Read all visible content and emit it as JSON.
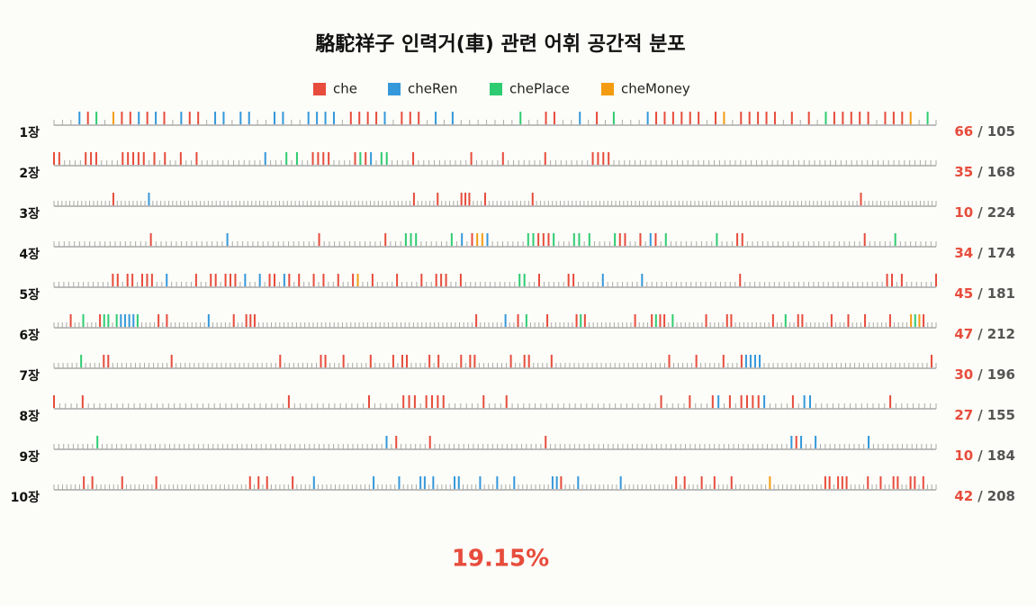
{
  "chart_data": {
    "type": "tick-strip",
    "title": "駱駝祥子 인력거(車) 관련 어휘 공간적 분포",
    "series": [
      {
        "name": "che",
        "color": "#e74c3c"
      },
      {
        "name": "cheRen",
        "color": "#3498db"
      },
      {
        "name": "chePlace",
        "color": "#2ecc71"
      },
      {
        "name": "cheMoney",
        "color": "#f39c12"
      }
    ],
    "separator": "/",
    "chapters": [
      {
        "label": "1장",
        "count": 66,
        "total": 105,
        "hits": [
          [
            4,
            8,
            9,
            11,
            13,
            16,
            17,
            35,
            36,
            37,
            38,
            41,
            42,
            43,
            58,
            59,
            64,
            71,
            72,
            73,
            74,
            75,
            76,
            78,
            81,
            82,
            83,
            84,
            85,
            87,
            89,
            92,
            93,
            94,
            95,
            96,
            98,
            99,
            100
          ],
          [
            3,
            10,
            12,
            15,
            19,
            20,
            22,
            23,
            26,
            27,
            30,
            31,
            32,
            33,
            39,
            45,
            47,
            62,
            70
          ],
          [
            5,
            55,
            66,
            91,
            103
          ],
          [
            7,
            79,
            101
          ]
        ]
      },
      {
        "label": "2장",
        "count": 35,
        "total": 168,
        "hits": [
          [
            0,
            1,
            6,
            7,
            8,
            13,
            14,
            15,
            16,
            17,
            19,
            21,
            24,
            27,
            49,
            50,
            51,
            52,
            57,
            59,
            68,
            79,
            85,
            93,
            102,
            103,
            104,
            105
          ],
          [
            40,
            60
          ],
          [
            44,
            46,
            58,
            62,
            63
          ],
          []
        ]
      },
      {
        "label": "3장",
        "count": 10,
        "total": 224,
        "hits": [
          [
            15,
            91,
            97,
            103,
            104,
            105,
            109,
            121,
            204
          ],
          [
            24
          ],
          [],
          []
        ]
      },
      {
        "label": "4장",
        "count": 34,
        "total": 174,
        "hits": [
          [
            19,
            52,
            65,
            82,
            95,
            96,
            97,
            111,
            112,
            115,
            118,
            134,
            135,
            159
          ],
          [
            34,
            80,
            85,
            117
          ],
          [
            69,
            70,
            71,
            78,
            93,
            94,
            98,
            102,
            103,
            105,
            110,
            120,
            130,
            165
          ],
          [
            83,
            84
          ]
        ]
      },
      {
        "label": "5장",
        "count": 45,
        "total": 181,
        "hits": [
          [
            12,
            13,
            15,
            16,
            18,
            19,
            20,
            29,
            32,
            33,
            35,
            36,
            37,
            44,
            45,
            48,
            50,
            53,
            55,
            58,
            61,
            65,
            70,
            75,
            78,
            79,
            80,
            83,
            99,
            105,
            106,
            140,
            170,
            171,
            173,
            180
          ],
          [
            23,
            39,
            42,
            47,
            112,
            120
          ],
          [
            95,
            96
          ],
          [
            62
          ]
        ]
      },
      {
        "label": "6장",
        "count": 47,
        "total": 212,
        "hits": [
          [
            4,
            11,
            25,
            27,
            43,
            46,
            47,
            48,
            101,
            111,
            118,
            125,
            127,
            139,
            143,
            145,
            146,
            156,
            161,
            162,
            172,
            178,
            179,
            186,
            190,
            194,
            200,
            208
          ],
          [
            16,
            17,
            18,
            19,
            37,
            108
          ],
          [
            7,
            12,
            13,
            15,
            20,
            113,
            126,
            144,
            148,
            175,
            206
          ],
          [
            205,
            207
          ]
        ]
      },
      {
        "label": "7장",
        "count": 30,
        "total": 196,
        "hits": [
          [
            11,
            12,
            26,
            50,
            59,
            60,
            64,
            70,
            75,
            77,
            78,
            83,
            85,
            90,
            92,
            93,
            101,
            104,
            105,
            110,
            136,
            142,
            148,
            152,
            194
          ],
          [
            153,
            154,
            155,
            156
          ],
          [
            6
          ],
          []
        ]
      },
      {
        "label": "8장",
        "count": 27,
        "total": 155,
        "hits": [
          [
            0,
            5,
            41,
            55,
            61,
            62,
            63,
            65,
            66,
            67,
            68,
            75,
            79,
            106,
            111,
            115,
            118,
            120,
            121,
            122,
            123,
            129,
            146
          ],
          [
            116,
            124,
            131,
            132
          ],
          [],
          []
        ]
      },
      {
        "label": "9장",
        "count": 10,
        "total": 184,
        "hits": [
          [
            71,
            78,
            102,
            154
          ],
          [
            69,
            153,
            155,
            158,
            169
          ],
          [
            9
          ],
          []
        ]
      },
      {
        "label": "10장",
        "count": 42,
        "total": 208,
        "hits": [
          [
            7,
            9,
            16,
            24,
            46,
            48,
            50,
            56,
            119,
            146,
            148,
            152,
            155,
            159,
            181,
            182,
            184,
            185,
            186,
            191,
            194,
            197,
            198,
            201,
            202,
            204
          ],
          [
            61,
            75,
            81,
            86,
            87,
            89,
            94,
            95,
            100,
            104,
            108,
            117,
            118,
            123,
            133
          ],
          [],
          [
            168
          ]
        ]
      }
    ],
    "summary": "19.15%"
  }
}
